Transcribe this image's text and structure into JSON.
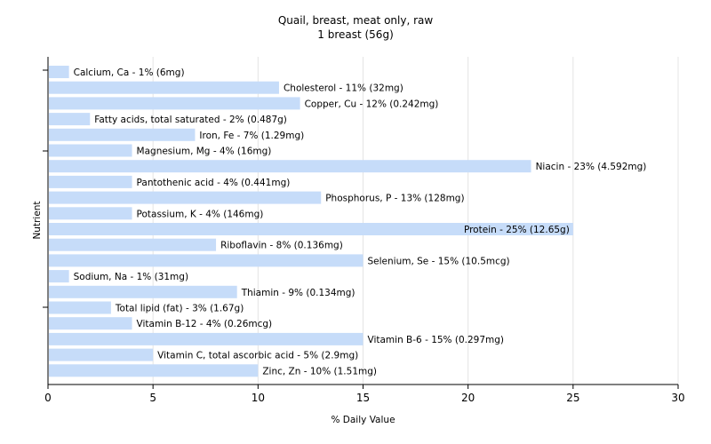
{
  "chart_data": {
    "type": "bar",
    "orientation": "horizontal",
    "title": "Quail, breast, meat only, raw",
    "subtitle": "1 breast (56g)",
    "xlabel": "% Daily Value",
    "ylabel": "Nutrient",
    "xlim": [
      0,
      30
    ],
    "xticks": [
      0,
      5,
      10,
      15,
      20,
      25,
      30
    ],
    "grid": true,
    "bar_color": "#c6dcf9",
    "gridline_color": "#e4e4e4",
    "categories": [
      "Calcium, Ca",
      "Cholesterol",
      "Copper, Cu",
      "Fatty acids, total saturated",
      "Iron, Fe",
      "Magnesium, Mg",
      "Niacin",
      "Pantothenic acid",
      "Phosphorus, P",
      "Potassium, K",
      "Protein",
      "Riboflavin",
      "Selenium, Se",
      "Sodium, Na",
      "Thiamin",
      "Total lipid (fat)",
      "Vitamin B-12",
      "Vitamin B-6",
      "Vitamin C, total ascorbic acid",
      "Zinc, Zn"
    ],
    "values": [
      1,
      11,
      12,
      2,
      7,
      4,
      23,
      4,
      13,
      4,
      25,
      8,
      15,
      1,
      9,
      3,
      4,
      15,
      5,
      10
    ],
    "labels": [
      "Calcium, Ca - 1% (6mg)",
      "Cholesterol - 11% (32mg)",
      "Copper, Cu - 12% (0.242mg)",
      "Fatty acids, total saturated - 2% (0.487g)",
      "Iron, Fe - 7% (1.29mg)",
      "Magnesium, Mg - 4% (16mg)",
      "Niacin - 23% (4.592mg)",
      "Pantothenic acid - 4% (0.441mg)",
      "Phosphorus, P - 13% (128mg)",
      "Potassium, K - 4% (146mg)",
      "Protein - 25% (12.65g)",
      "Riboflavin - 8% (0.136mg)",
      "Selenium, Se - 15% (10.5mcg)",
      "Sodium, Na - 1% (31mg)",
      "Thiamin - 9% (0.134mg)",
      "Total lipid (fat) - 3% (1.67g)",
      "Vitamin B-12 - 4% (0.26mcg)",
      "Vitamin B-6 - 15% (0.297mg)",
      "Vitamin C, total ascorbic acid - 5% (2.9mg)",
      "Zinc, Zn - 10% (1.51mg)"
    ]
  }
}
